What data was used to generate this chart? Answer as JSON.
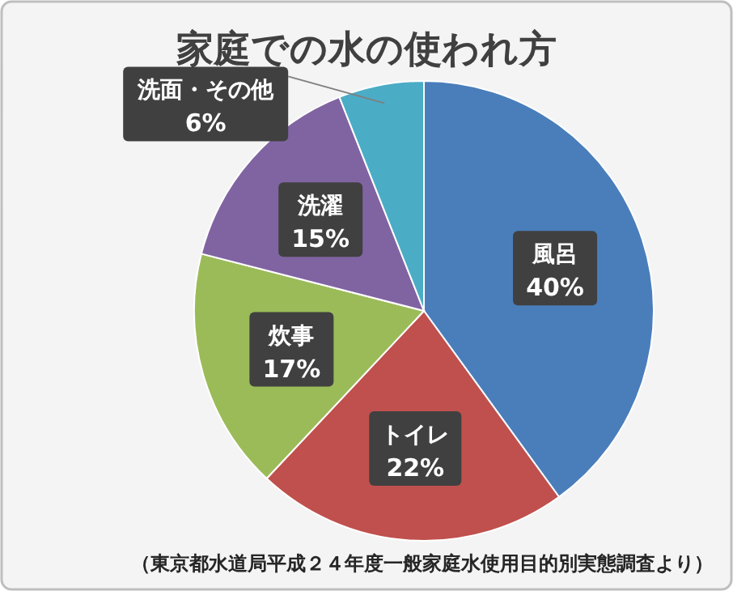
{
  "chart_data": {
    "type": "pie",
    "title": "家庭での水の使われ方",
    "categories": [
      "風呂",
      "トイレ",
      "炊事",
      "洗濯",
      "洗面・その他"
    ],
    "values": [
      40,
      22,
      17,
      15,
      6
    ],
    "colors": [
      "#4a7ebb",
      "#c0504d",
      "#9bbb59",
      "#8064a2",
      "#4bacc6"
    ],
    "value_labels": [
      "40%",
      "22%",
      "17%",
      "15%",
      "6%"
    ],
    "annotations": [
      "（東京都水道局平成２４年度一般家庭水使用目的別実態調査より）"
    ]
  }
}
